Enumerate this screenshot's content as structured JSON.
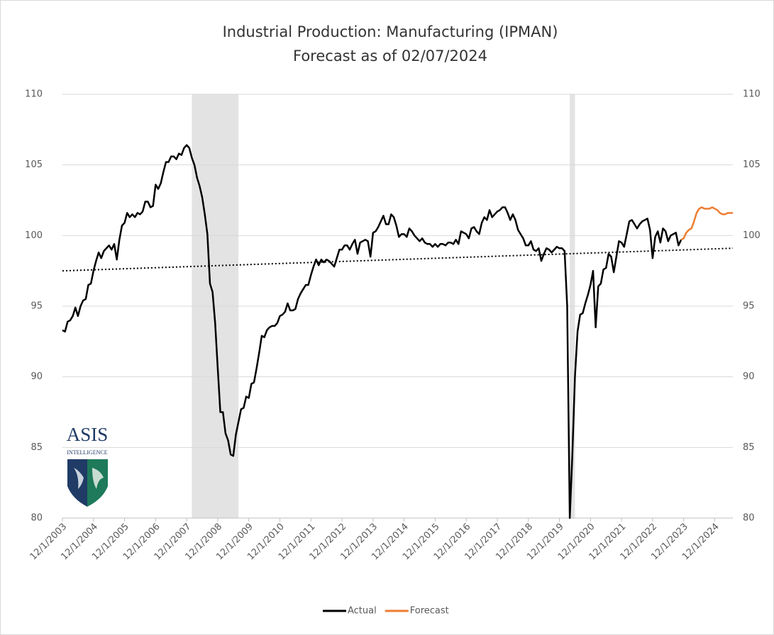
{
  "chart_data": {
    "type": "line",
    "title": "Industrial Production:  Manufacturing (IPMAN)",
    "subtitle": "Forecast as of 02/07/2024",
    "xlim": [
      "12/1/2003",
      "7/1/2025"
    ],
    "xticks": [
      "12/1/2003",
      "12/1/2004",
      "12/1/2005",
      "12/1/2006",
      "12/1/2007",
      "12/1/2008",
      "12/1/2009",
      "12/1/2010",
      "12/1/2011",
      "12/1/2012",
      "12/1/2013",
      "12/1/2014",
      "12/1/2015",
      "12/1/2016",
      "12/1/2017",
      "12/1/2018",
      "12/1/2019",
      "12/1/2020",
      "12/1/2021",
      "12/1/2022",
      "12/1/2023",
      "12/1/2024"
    ],
    "ylim": [
      80,
      110
    ],
    "yticks": [
      80,
      85,
      90,
      95,
      100,
      105,
      110
    ],
    "y2lim": [
      80,
      110
    ],
    "y2ticks": [
      80,
      85,
      90,
      95,
      100,
      105,
      110
    ],
    "grid": true,
    "legend": "bottom",
    "shaded_periods": [
      [
        "2/1/2008",
        "8/1/2009"
      ],
      [
        "4/1/2020",
        "6/1/2020"
      ]
    ],
    "shade_color": "#e3e3e3",
    "trendline": {
      "x": [
        "12/1/2003",
        "7/1/2025"
      ],
      "values": [
        97.5,
        99.1
      ],
      "color": "#000000"
    },
    "series": [
      {
        "name": "Actual",
        "color": "#000000",
        "x": [
          "12/1/2003",
          "1/1/2004",
          "2/1/2004",
          "3/1/2004",
          "4/1/2004",
          "5/1/2004",
          "6/1/2004",
          "7/1/2004",
          "8/1/2004",
          "9/1/2004",
          "10/1/2004",
          "11/1/2004",
          "12/1/2004",
          "1/1/2005",
          "2/1/2005",
          "3/1/2005",
          "4/1/2005",
          "5/1/2005",
          "6/1/2005",
          "7/1/2005",
          "8/1/2005",
          "9/1/2005",
          "10/1/2005",
          "11/1/2005",
          "12/1/2005",
          "1/1/2006",
          "2/1/2006",
          "3/1/2006",
          "4/1/2006",
          "5/1/2006",
          "6/1/2006",
          "7/1/2006",
          "8/1/2006",
          "9/1/2006",
          "10/1/2006",
          "11/1/2006",
          "12/1/2006",
          "1/1/2007",
          "2/1/2007",
          "3/1/2007",
          "4/1/2007",
          "5/1/2007",
          "6/1/2007",
          "7/1/2007",
          "8/1/2007",
          "9/1/2007",
          "10/1/2007",
          "11/1/2007",
          "12/1/2007",
          "1/1/2008",
          "2/1/2008",
          "3/1/2008",
          "4/1/2008",
          "5/1/2008",
          "6/1/2008",
          "7/1/2008",
          "8/1/2008",
          "9/1/2008",
          "10/1/2008",
          "11/1/2008",
          "12/1/2008",
          "1/1/2009",
          "2/1/2009",
          "3/1/2009",
          "4/1/2009",
          "5/1/2009",
          "6/1/2009",
          "7/1/2009",
          "8/1/2009",
          "9/1/2009",
          "10/1/2009",
          "11/1/2009",
          "12/1/2009",
          "1/1/2010",
          "2/1/2010",
          "3/1/2010",
          "4/1/2010",
          "5/1/2010",
          "6/1/2010",
          "7/1/2010",
          "8/1/2010",
          "9/1/2010",
          "10/1/2010",
          "11/1/2010",
          "12/1/2010",
          "1/1/2011",
          "2/1/2011",
          "3/1/2011",
          "4/1/2011",
          "5/1/2011",
          "6/1/2011",
          "7/1/2011",
          "8/1/2011",
          "9/1/2011",
          "10/1/2011",
          "11/1/2011",
          "12/1/2011",
          "1/1/2012",
          "2/1/2012",
          "3/1/2012",
          "4/1/2012",
          "5/1/2012",
          "6/1/2012",
          "7/1/2012",
          "8/1/2012",
          "9/1/2012",
          "10/1/2012",
          "11/1/2012",
          "12/1/2012",
          "1/1/2013",
          "2/1/2013",
          "3/1/2013",
          "4/1/2013",
          "5/1/2013",
          "6/1/2013",
          "7/1/2013",
          "8/1/2013",
          "9/1/2013",
          "10/1/2013",
          "11/1/2013",
          "12/1/2013",
          "1/1/2014",
          "2/1/2014",
          "3/1/2014",
          "4/1/2014",
          "5/1/2014",
          "6/1/2014",
          "7/1/2014",
          "8/1/2014",
          "9/1/2014",
          "10/1/2014",
          "11/1/2014",
          "12/1/2014",
          "1/1/2015",
          "2/1/2015",
          "3/1/2015",
          "4/1/2015",
          "5/1/2015",
          "6/1/2015",
          "7/1/2015",
          "8/1/2015",
          "9/1/2015",
          "10/1/2015",
          "11/1/2015",
          "12/1/2015",
          "1/1/2016",
          "2/1/2016",
          "3/1/2016",
          "4/1/2016",
          "5/1/2016",
          "6/1/2016",
          "7/1/2016",
          "8/1/2016",
          "9/1/2016",
          "10/1/2016",
          "11/1/2016",
          "12/1/2016",
          "1/1/2017",
          "2/1/2017",
          "3/1/2017",
          "4/1/2017",
          "5/1/2017",
          "6/1/2017",
          "7/1/2017",
          "8/1/2017",
          "9/1/2017",
          "10/1/2017",
          "11/1/2017",
          "12/1/2017",
          "1/1/2018",
          "2/1/2018",
          "3/1/2018",
          "4/1/2018",
          "5/1/2018",
          "6/1/2018",
          "7/1/2018",
          "8/1/2018",
          "9/1/2018",
          "10/1/2018",
          "11/1/2018",
          "12/1/2018",
          "1/1/2019",
          "2/1/2019",
          "3/1/2019",
          "4/1/2019",
          "5/1/2019",
          "6/1/2019",
          "7/1/2019",
          "8/1/2019",
          "9/1/2019",
          "10/1/2019",
          "11/1/2019",
          "12/1/2019",
          "1/1/2020",
          "2/1/2020",
          "3/1/2020",
          "4/1/2020",
          "5/1/2020",
          "6/1/2020",
          "7/1/2020",
          "8/1/2020",
          "9/1/2020",
          "10/1/2020",
          "11/1/2020",
          "12/1/2020",
          "1/1/2021",
          "2/1/2021",
          "3/1/2021",
          "4/1/2021",
          "5/1/2021",
          "6/1/2021",
          "7/1/2021",
          "8/1/2021",
          "9/1/2021",
          "10/1/2021",
          "11/1/2021",
          "12/1/2021",
          "1/1/2022",
          "2/1/2022",
          "3/1/2022",
          "4/1/2022",
          "5/1/2022",
          "6/1/2022",
          "7/1/2022",
          "8/1/2022",
          "9/1/2022",
          "10/1/2022",
          "11/1/2022",
          "12/1/2022",
          "1/1/2023",
          "2/1/2023",
          "3/1/2023",
          "4/1/2023",
          "5/1/2023",
          "6/1/2023",
          "7/1/2023",
          "8/1/2023",
          "9/1/2023",
          "10/1/2023",
          "11/1/2023"
        ],
        "values": [
          93.3,
          93.2,
          93.9,
          94.0,
          94.3,
          94.9,
          94.3,
          95.0,
          95.4,
          95.5,
          96.5,
          96.6,
          97.5,
          98.2,
          98.8,
          98.4,
          98.9,
          99.1,
          99.3,
          99.0,
          99.4,
          98.3,
          99.7,
          100.7,
          100.9,
          101.6,
          101.3,
          101.5,
          101.3,
          101.6,
          101.5,
          101.7,
          102.4,
          102.4,
          102.0,
          102.1,
          103.6,
          103.3,
          103.7,
          104.5,
          105.2,
          105.2,
          105.6,
          105.6,
          105.4,
          105.8,
          105.7,
          106.2,
          106.4,
          106.2,
          105.5,
          105.0,
          104.1,
          103.5,
          102.7,
          101.5,
          100.1,
          96.6,
          96.0,
          93.8,
          90.6,
          87.5,
          87.5,
          86.0,
          85.5,
          84.5,
          84.4,
          85.9,
          86.8,
          87.7,
          87.8,
          88.6,
          88.5,
          89.5,
          89.6,
          90.6,
          91.7,
          92.9,
          92.8,
          93.3,
          93.5,
          93.6,
          93.6,
          93.8,
          94.3,
          94.4,
          94.6,
          95.2,
          94.7,
          94.7,
          94.8,
          95.5,
          95.9,
          96.2,
          96.5,
          96.5,
          97.2,
          97.8,
          98.3,
          97.9,
          98.3,
          98.1,
          98.3,
          98.2,
          98.0,
          97.8,
          98.4,
          99.0,
          99.0,
          99.3,
          99.3,
          99.0,
          99.4,
          99.7,
          98.7,
          99.5,
          99.6,
          99.7,
          99.6,
          98.5,
          100.2,
          100.3,
          100.6,
          101.0,
          101.4,
          100.8,
          100.8,
          101.5,
          101.3,
          100.7,
          99.9,
          100.1,
          100.1,
          99.9,
          100.5,
          100.3,
          100.0,
          99.8,
          99.6,
          99.8,
          99.5,
          99.4,
          99.4,
          99.2,
          99.4,
          99.2,
          99.4,
          99.4,
          99.3,
          99.5,
          99.5,
          99.4,
          99.7,
          99.4,
          100.3,
          100.2,
          100.1,
          99.8,
          100.5,
          100.6,
          100.3,
          100.1,
          100.9,
          101.3,
          101.1,
          101.8,
          101.3,
          101.5,
          101.7,
          101.8,
          102.0,
          102.0,
          101.6,
          101.1,
          101.5,
          101.1,
          100.4,
          100.1,
          99.8,
          99.3,
          99.3,
          99.6,
          99.0,
          98.9,
          99.1,
          98.2,
          98.7,
          99.1,
          99.0,
          98.8,
          99.0,
          99.2,
          99.1,
          99.1,
          98.9,
          95.0,
          80.0,
          84.5,
          90.0,
          93.2,
          94.4,
          94.5,
          95.2,
          95.8,
          96.5,
          97.5,
          93.5,
          96.4,
          96.6,
          97.6,
          97.7,
          98.7,
          98.5,
          97.4,
          98.5,
          99.6,
          99.5,
          99.2,
          100.1,
          101.0,
          101.1,
          100.8,
          100.5,
          100.8,
          101.0,
          101.1,
          101.2,
          100.4,
          98.4,
          99.9,
          100.3,
          99.5,
          100.5,
          100.3,
          99.6,
          100.0,
          100.1,
          100.2,
          99.3,
          99.7
        ]
      },
      {
        "name": "Forecast",
        "color": "#ed7d31",
        "x": [
          "11/1/2023",
          "12/1/2023",
          "1/1/2024",
          "2/1/2024",
          "3/1/2024",
          "4/1/2024",
          "5/1/2024",
          "6/1/2024",
          "7/1/2024",
          "8/1/2024",
          "9/1/2024",
          "10/1/2024",
          "11/1/2024",
          "12/1/2024",
          "1/1/2025",
          "2/1/2025",
          "3/1/2025",
          "4/1/2025",
          "5/1/2025",
          "6/1/2025",
          "7/1/2025"
        ],
        "values": [
          99.7,
          99.8,
          100.2,
          100.4,
          100.5,
          101.0,
          101.6,
          101.9,
          102.0,
          101.9,
          101.9,
          101.9,
          102.0,
          101.9,
          101.8,
          101.6,
          101.5,
          101.5,
          101.6,
          101.6,
          101.6
        ]
      }
    ]
  },
  "logo": {
    "name": "ASIS",
    "tagline": "INTELLIGENCE"
  }
}
